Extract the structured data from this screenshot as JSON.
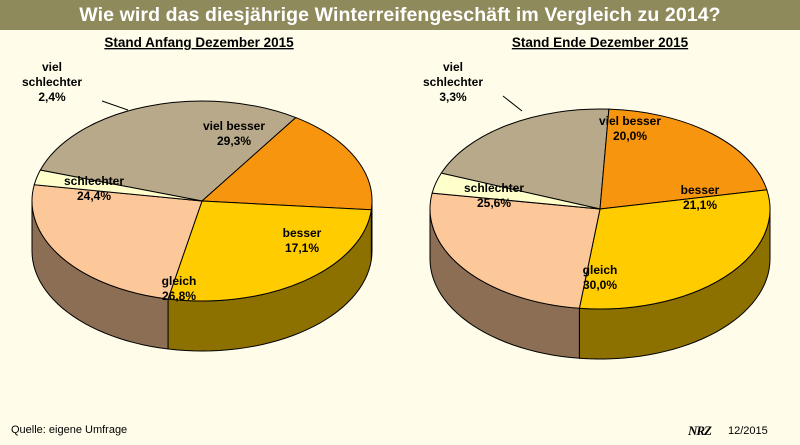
{
  "page": {
    "title": "Wie wird das diesjährige Winterreifengeschäft im Vergleich zu 2014?",
    "source": "Quelle: eigene Umfrage",
    "logo": "NRZ",
    "date": "12/2015"
  },
  "colors": {
    "title_bar": "#8f8a5b",
    "background": "#fffde9",
    "viel_besser": "#b8a98a",
    "besser": "#f7960e",
    "gleich": "#ffcc00",
    "schlechter": "#fcc899",
    "viel_schlechter": "#ffffcc"
  },
  "chart_data": [
    {
      "type": "pie",
      "title": "Stand Anfang Dezember 2015",
      "slices": [
        {
          "label": "viel besser",
          "value": 29.3,
          "value_label": "29,3%",
          "color": "#b8a98a"
        },
        {
          "label": "besser",
          "value": 17.1,
          "value_label": "17,1%",
          "color": "#f7960e"
        },
        {
          "label": "gleich",
          "value": 26.8,
          "value_label": "26,8%",
          "color": "#ffcc00"
        },
        {
          "label": "schlechter",
          "value": 24.4,
          "value_label": "24,4%",
          "color": "#fcc899"
        },
        {
          "label": "viel schlechter",
          "value": 2.4,
          "value_label": "2,4%",
          "color": "#ffffcc"
        }
      ]
    },
    {
      "type": "pie",
      "title": "Stand Ende Dezember 2015",
      "slices": [
        {
          "label": "viel besser",
          "value": 20.0,
          "value_label": "20,0%",
          "color": "#b8a98a"
        },
        {
          "label": "besser",
          "value": 21.1,
          "value_label": "21,1%",
          "color": "#f7960e"
        },
        {
          "label": "gleich",
          "value": 30.0,
          "value_label": "30,0%",
          "color": "#ffcc00"
        },
        {
          "label": "schlechter",
          "value": 25.6,
          "value_label": "25,6%",
          "color": "#fcc899"
        },
        {
          "label": "viel schlechter",
          "value": 3.3,
          "value_label": "3,3%",
          "color": "#ffffcc"
        }
      ]
    }
  ]
}
